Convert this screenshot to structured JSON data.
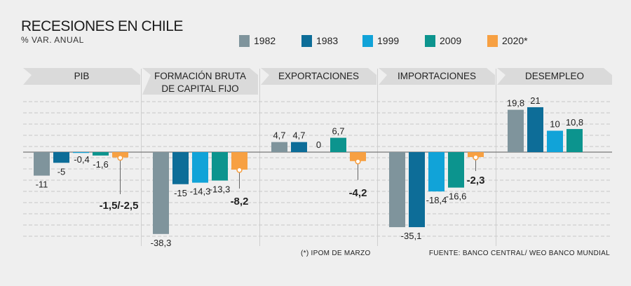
{
  "title": "RECESIONES EN CHILE",
  "subtitle": "% VAR. ANUAL",
  "footnote": "(*) IPOM DE MARZO",
  "source": "FUENTE: BANCO CENTRAL/ WEO BANCO MUNDIAL",
  "colors": {
    "1982": "#7f949c",
    "1983": "#0d6d98",
    "1999": "#11a3d8",
    "2009": "#0c948e",
    "2020": "#f7a042",
    "header_bg": "#dadada",
    "grid": "#c7c7c7",
    "axis": "#777777"
  },
  "legend": [
    {
      "label": "1982",
      "color_key": "1982"
    },
    {
      "label": "1983",
      "color_key": "1983"
    },
    {
      "label": "1999",
      "color_key": "1999"
    },
    {
      "label": "2009",
      "color_key": "2009"
    },
    {
      "label": "2020*",
      "color_key": "2020"
    }
  ],
  "chart_data": {
    "type": "bar",
    "ylim": [
      -40,
      25
    ],
    "grid": true,
    "series_names": [
      "1982",
      "1983",
      "1999",
      "2009",
      "2020*"
    ],
    "groups": [
      {
        "title": [
          "PIB"
        ],
        "values": [
          -11,
          -5,
          -0.4,
          -1.6,
          -2.5
        ],
        "labels": [
          "-11",
          "-5",
          "-0,4",
          "-1,6",
          "-1,5/-2,5"
        ]
      },
      {
        "title": [
          "FORMACIÓN BRUTA",
          "DE CAPITAL FIJO"
        ],
        "values": [
          -38.3,
          -15,
          -14.3,
          -13.3,
          -8.2
        ],
        "labels": [
          "-38,3",
          "-15",
          "-14,3",
          "-13,3",
          "-8,2"
        ]
      },
      {
        "title": [
          "EXPORTACIONES"
        ],
        "values": [
          4.7,
          4.7,
          0,
          6.7,
          -4.2
        ],
        "labels": [
          "4,7",
          "4,7",
          "0",
          "6,7",
          "-4,2"
        ]
      },
      {
        "title": [
          "IMPORTACIONES"
        ],
        "values": [
          -35.1,
          -35.1,
          -18.4,
          -16.6,
          -2.3
        ],
        "labels": [
          "",
          "-35,1",
          "-18,4",
          "-16,6",
          "-2,3"
        ]
      },
      {
        "title": [
          "DESEMPLEO"
        ],
        "values": [
          19.8,
          21,
          10,
          10.8,
          null
        ],
        "labels": [
          "19,8",
          "21",
          "10",
          "10,8",
          ""
        ]
      }
    ]
  }
}
